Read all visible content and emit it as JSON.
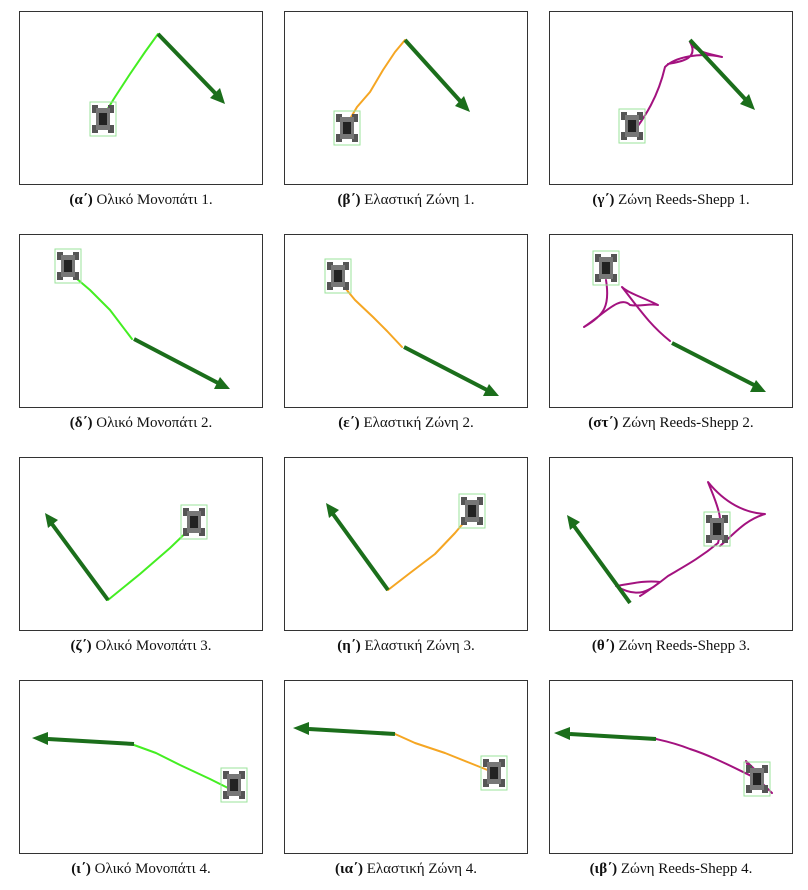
{
  "colors": {
    "global_path": "#44ee22",
    "elastic_band": "#f5a623",
    "reeds_shepp": "#a3127f",
    "goal_arrow": "#1b6e1b",
    "robot_box": "#9be39b"
  },
  "figures": [
    {
      "letter": "(α΄)",
      "label": "Ολικό Μονοπάτι 1.",
      "kind": "global"
    },
    {
      "letter": "(β΄)",
      "label": "Ελαστική Ζώνη 1.",
      "kind": "elastic"
    },
    {
      "letter": "(γ΄)",
      "label": "Ζώνη Reeds-Shepp 1.",
      "kind": "reeds"
    },
    {
      "letter": "(δ΄)",
      "label": "Ολικό Μονοπάτι 2.",
      "kind": "global"
    },
    {
      "letter": "(ε΄)",
      "label": "Ελαστική Ζώνη 2.",
      "kind": "elastic"
    },
    {
      "letter": "(στ΄)",
      "label": "Ζώνη Reeds-Shepp 2.",
      "kind": "reeds"
    },
    {
      "letter": "(ζ΄)",
      "label": "Ολικό Μονοπάτι 3.",
      "kind": "global"
    },
    {
      "letter": "(η΄)",
      "label": "Ελαστική Ζώνη 3.",
      "kind": "elastic"
    },
    {
      "letter": "(θ΄)",
      "label": "Ζώνη Reeds-Shepp 3.",
      "kind": "reeds"
    },
    {
      "letter": "(ι΄)",
      "label": "Ολικό Μονοπάτι 4.",
      "kind": "global"
    },
    {
      "letter": "(ια΄)",
      "label": "Ελαστική Ζώνη 4.",
      "kind": "elastic"
    },
    {
      "letter": "(ιβ΄)",
      "label": "Ζώνη Reeds-Shepp 4.",
      "kind": "reeds"
    }
  ]
}
